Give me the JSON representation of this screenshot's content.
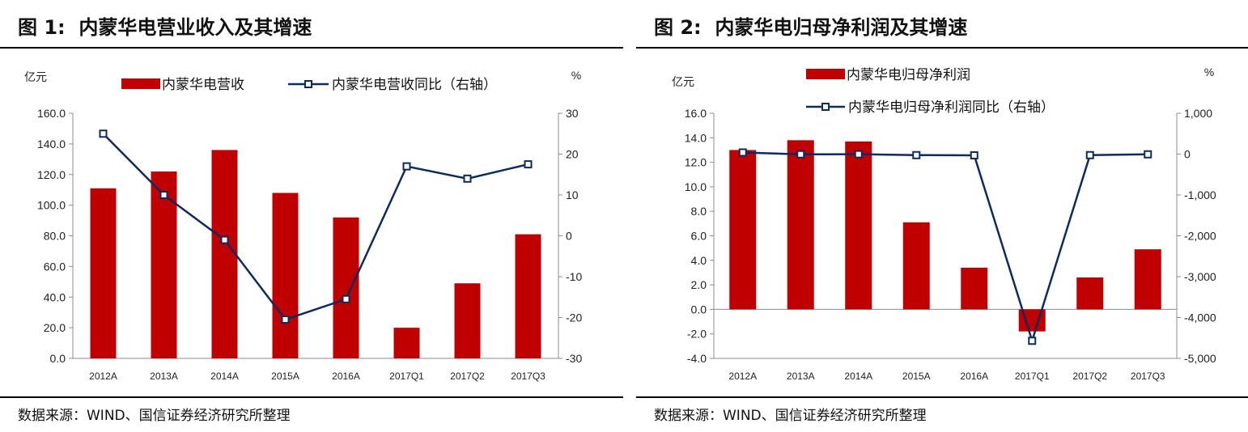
{
  "charts": [
    {
      "figure_label": "图 1:",
      "title": "内蒙华电营业收入及其增速",
      "source": "数据来源：WIND、国信证券经济研究所整理",
      "left_unit": "亿元",
      "right_unit": "%",
      "legend_bar": "内蒙华电营收",
      "legend_line": "内蒙华电营收同比（右轴）"
    },
    {
      "figure_label": "图 2:",
      "title": "内蒙华电归母净利润及其增速",
      "source": "数据来源：WIND、国信证券经济研究所整理",
      "left_unit": "亿元",
      "right_unit": "%",
      "legend_bar": "内蒙华电归母净利润",
      "legend_line": "内蒙华电归母净利润同比（右轴）"
    }
  ],
  "chart_data": [
    {
      "type": "bar",
      "categories": [
        "2012A",
        "2013A",
        "2014A",
        "2015A",
        "2016A",
        "2017Q1",
        "2017Q2",
        "2017Q3"
      ],
      "series": [
        {
          "name": "内蒙华电营收",
          "type": "bar",
          "axis": "left",
          "values": [
            111,
            122,
            136,
            108,
            92,
            20,
            49,
            81
          ]
        },
        {
          "name": "内蒙华电营收同比（右轴）",
          "type": "line",
          "axis": "right",
          "values": [
            25,
            10,
            -1,
            -20.5,
            -15.5,
            17,
            14,
            17.5
          ]
        }
      ],
      "ylim_left": [
        0,
        160
      ],
      "ylim_right": [
        -30,
        30
      ],
      "yticks_left": [
        "0.0",
        "20.0",
        "40.0",
        "60.0",
        "80.0",
        "100.0",
        "120.0",
        "140.0",
        "160.0"
      ],
      "yticks_right": [
        "-30",
        "-20",
        "-10",
        "0",
        "10",
        "20",
        "30"
      ],
      "colors": {
        "bar": "#c00000",
        "line": "#0f2a5c"
      }
    },
    {
      "type": "bar",
      "categories": [
        "2012A",
        "2013A",
        "2014A",
        "2015A",
        "2016A",
        "2017Q1",
        "2017Q2",
        "2017Q3"
      ],
      "series": [
        {
          "name": "内蒙华电归母净利润",
          "type": "bar",
          "axis": "left",
          "values": [
            13.0,
            13.8,
            13.7,
            7.1,
            3.4,
            -1.8,
            2.6,
            4.9
          ]
        },
        {
          "name": "内蒙华电归母净利润同比（右轴）",
          "type": "line",
          "axis": "right",
          "values": [
            40,
            -5,
            -3,
            -25,
            -30,
            -4570,
            -25,
            -5
          ]
        }
      ],
      "ylim_left": [
        -4,
        16
      ],
      "ylim_right": [
        -5000,
        1000
      ],
      "yticks_left": [
        "-4.0",
        "-2.0",
        "0.0",
        "2.0",
        "4.0",
        "6.0",
        "8.0",
        "10.0",
        "12.0",
        "14.0",
        "16.0"
      ],
      "yticks_right": [
        "-5,000",
        "-4,000",
        "-3,000",
        "-2,000",
        "-1,000",
        "0",
        "1,000"
      ],
      "colors": {
        "bar": "#c00000",
        "line": "#0f2a5c"
      }
    }
  ]
}
